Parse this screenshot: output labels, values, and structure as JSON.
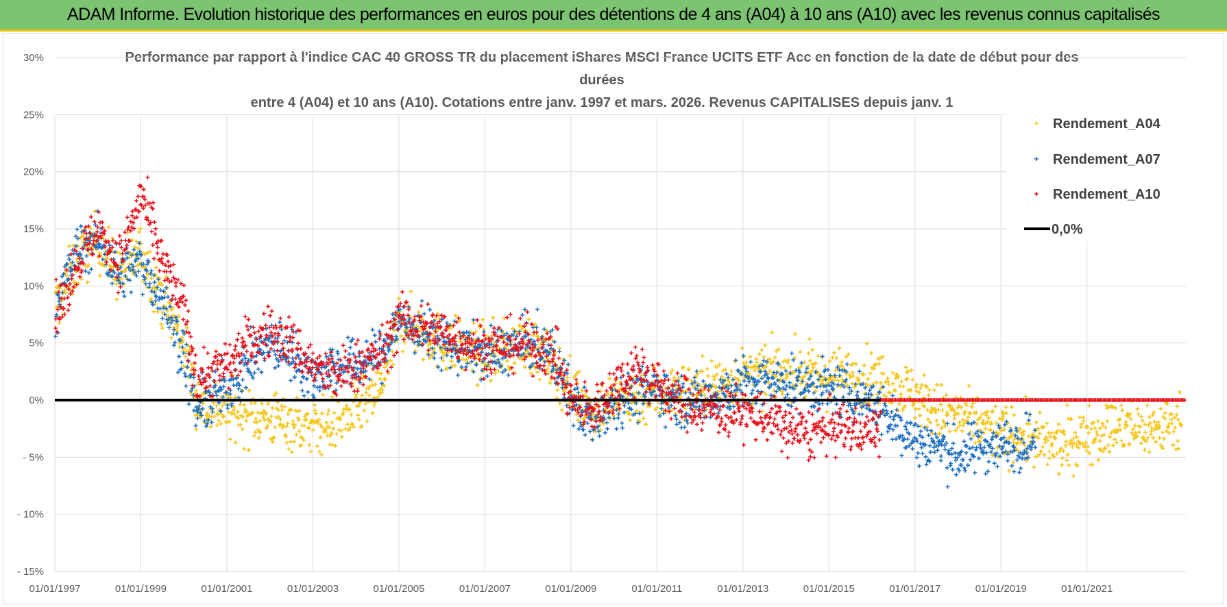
{
  "banner": {
    "title": "ADAM Informe. Evolution historique des performances en euros pour des détentions de 4 ans (A04) à 10 ans (A10) avec les revenus connus capitalisés"
  },
  "chart_data": {
    "type": "scatter",
    "title_lines": [
      "Performance par rapport à l'indice CAC 40 GROSS TR  du placement iShares MSCI France UCITS ETF Acc en fonction de la date de début pour des",
      "durées",
      "entre 4 (A04) et 10 ans (A10).  Cotations entre janv. 1997 et mars. 2026. Revenus CAPITALISES depuis janv. 1"
    ],
    "x_ticks": [
      "01/01/1997",
      "01/01/1999",
      "01/01/2001",
      "01/01/2003",
      "01/01/2005",
      "01/01/2007",
      "01/01/2009",
      "01/01/2011",
      "01/01/2013",
      "01/01/2015",
      "01/01/2017",
      "01/01/2019",
      "01/01/2021"
    ],
    "xlim": [
      1997.0,
      2023.3
    ],
    "y_ticks": [
      "30%",
      "25%",
      "20%",
      "15%",
      "10%",
      "5%",
      "0%",
      "- 5%",
      "- 10%",
      "- 15%"
    ],
    "ylim": [
      -15,
      30
    ],
    "grid": true,
    "legend": {
      "position": "top-right",
      "entries": [
        {
          "label": "Rendement_A04",
          "marker": "+",
          "color": "#f5c518"
        },
        {
          "label": "Rendement_A07",
          "marker": "+",
          "color": "#1f6fbf"
        },
        {
          "label": "Rendement_A10",
          "marker": "+",
          "color": "#e8101a"
        },
        {
          "label": "0,0%",
          "marker": "line",
          "color": "#000000"
        }
      ]
    },
    "series": [
      {
        "name": "Rendement_A04",
        "color": "#f5c518",
        "valid_until": 2023.2,
        "trend": [
          [
            1997.0,
            8
          ],
          [
            1997.5,
            12
          ],
          [
            1998.0,
            14
          ],
          [
            1998.5,
            11
          ],
          [
            1999.0,
            13
          ],
          [
            1999.5,
            9
          ],
          [
            2000.0,
            5
          ],
          [
            2000.3,
            0
          ],
          [
            2001.0,
            -1
          ],
          [
            2002.0,
            -1.5
          ],
          [
            2002.6,
            -2
          ],
          [
            2003.0,
            -2.5
          ],
          [
            2003.5,
            -2
          ],
          [
            2004.0,
            -1
          ],
          [
            2004.6,
            1
          ],
          [
            2005.0,
            7
          ],
          [
            2005.5,
            6
          ],
          [
            2006.0,
            5
          ],
          [
            2007.0,
            4
          ],
          [
            2008.0,
            5
          ],
          [
            2008.6,
            3
          ],
          [
            2009.0,
            1
          ],
          [
            2009.5,
            -1
          ],
          [
            2010.0,
            0
          ],
          [
            2011.0,
            0.5
          ],
          [
            2012.0,
            1
          ],
          [
            2013.0,
            2
          ],
          [
            2014.0,
            2.5
          ],
          [
            2015.0,
            2
          ],
          [
            2016.0,
            2
          ],
          [
            2016.5,
            1.5
          ],
          [
            2017.0,
            0.5
          ],
          [
            2017.5,
            -1
          ],
          [
            2018.0,
            -1.5
          ],
          [
            2018.5,
            -2
          ],
          [
            2019.0,
            -3
          ],
          [
            2019.5,
            -3
          ],
          [
            2020.0,
            -4
          ],
          [
            2020.5,
            -4
          ],
          [
            2021.0,
            -3
          ],
          [
            2021.5,
            -2.5
          ],
          [
            2022.0,
            -2.5
          ],
          [
            2022.5,
            -2.5
          ],
          [
            2023.2,
            -2
          ]
        ],
        "spread": 2.2
      },
      {
        "name": "Rendement_A07",
        "color": "#1f6fbf",
        "valid_until": 2019.8,
        "trend": [
          [
            1997.0,
            8
          ],
          [
            1997.5,
            13
          ],
          [
            1998.0,
            14
          ],
          [
            1998.5,
            11
          ],
          [
            1999.0,
            12
          ],
          [
            1999.5,
            9
          ],
          [
            2000.0,
            4
          ],
          [
            2000.3,
            -1
          ],
          [
            2001.0,
            1
          ],
          [
            2001.5,
            3
          ],
          [
            2002.0,
            5
          ],
          [
            2002.5,
            4
          ],
          [
            2003.0,
            2
          ],
          [
            2003.5,
            3
          ],
          [
            2004.0,
            3
          ],
          [
            2004.6,
            4
          ],
          [
            2005.0,
            7
          ],
          [
            2006.0,
            5
          ],
          [
            2007.0,
            4
          ],
          [
            2008.0,
            5
          ],
          [
            2008.6,
            4
          ],
          [
            2009.0,
            0
          ],
          [
            2009.5,
            -2
          ],
          [
            2010.0,
            0
          ],
          [
            2011.0,
            1
          ],
          [
            2011.5,
            0
          ],
          [
            2012.0,
            0
          ],
          [
            2013.0,
            1.5
          ],
          [
            2014.0,
            1.5
          ],
          [
            2015.0,
            1
          ],
          [
            2016.0,
            0
          ],
          [
            2016.5,
            -2
          ],
          [
            2017.0,
            -3.5
          ],
          [
            2017.5,
            -4
          ],
          [
            2018.0,
            -5
          ],
          [
            2018.5,
            -4
          ],
          [
            2019.0,
            -4
          ],
          [
            2019.8,
            -3.5
          ]
        ],
        "spread": 2.0
      },
      {
        "name": "Rendement_A10",
        "color": "#e8101a",
        "valid_until": 2016.2,
        "trend": [
          [
            1997.0,
            7
          ],
          [
            1997.5,
            12
          ],
          [
            1998.0,
            15
          ],
          [
            1998.5,
            12
          ],
          [
            1999.0,
            18
          ],
          [
            1999.5,
            12
          ],
          [
            2000.0,
            8
          ],
          [
            2000.3,
            2
          ],
          [
            2001.0,
            3
          ],
          [
            2001.5,
            5
          ],
          [
            2002.0,
            6
          ],
          [
            2002.5,
            5
          ],
          [
            2003.0,
            3
          ],
          [
            2003.5,
            2
          ],
          [
            2004.0,
            3
          ],
          [
            2004.6,
            4
          ],
          [
            2005.0,
            7
          ],
          [
            2006.0,
            6
          ],
          [
            2007.0,
            4.5
          ],
          [
            2008.0,
            5
          ],
          [
            2008.6,
            4
          ],
          [
            2009.0,
            0
          ],
          [
            2009.5,
            -1
          ],
          [
            2010.0,
            1
          ],
          [
            2010.5,
            3
          ],
          [
            2011.0,
            1.5
          ],
          [
            2011.5,
            0
          ],
          [
            2012.0,
            -0.5
          ],
          [
            2012.5,
            -1
          ],
          [
            2013.0,
            -1
          ],
          [
            2013.5,
            -1.5
          ],
          [
            2014.0,
            -2.5
          ],
          [
            2014.5,
            -3
          ],
          [
            2015.0,
            -2.5
          ],
          [
            2015.5,
            -2.5
          ],
          [
            2016.2,
            -2.5
          ]
        ],
        "spread": 2.0
      },
      {
        "name": "0,0%",
        "type": "line",
        "color": "#000000",
        "y": 0
      }
    ]
  }
}
